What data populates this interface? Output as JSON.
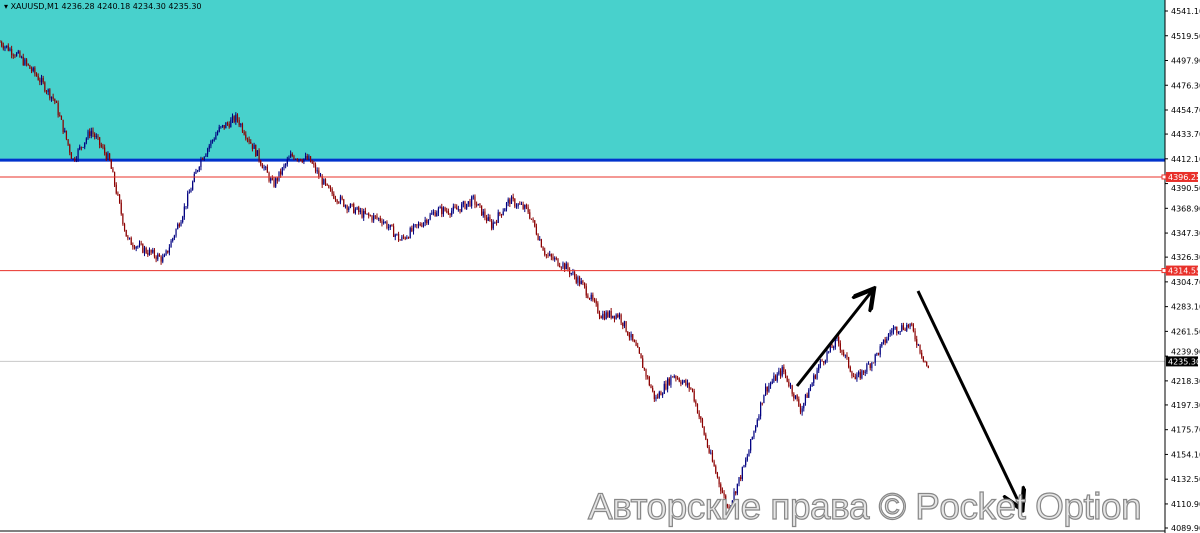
{
  "header": {
    "symbol_label": "XAUUSD,M1",
    "ohlc": "4236.28 4240.18 4234.30 4235.30"
  },
  "watermark": "Авторские права © Pocket Option",
  "colors": {
    "zone": "#48d1cc",
    "zone_line": "#0033cc",
    "level": "#e8302a",
    "up": "#000080",
    "down": "#8b0000",
    "current_price_bg": "#000000"
  },
  "chart_data": {
    "type": "candlestick",
    "ylim": [
      4089.9,
      4541.1
    ],
    "y_ticks": [
      "4541.10",
      "4519.50",
      "4497.90",
      "4476.30",
      "4454.70",
      "4433.70",
      "4412.10",
      "4390.50",
      "4368.90",
      "4347.30",
      "4326.30",
      "4304.70",
      "4283.10",
      "4261.50",
      "4239.90",
      "4218.30",
      "4197.30",
      "4175.70",
      "4154.10",
      "4132.50",
      "4110.90",
      "4089.90"
    ],
    "price_path": [
      4514,
      4502,
      4485,
      4463,
      4411,
      4437,
      4411,
      4341,
      4332,
      4324,
      4363,
      4411,
      4437,
      4448,
      4420,
      4389,
      4415,
      4411,
      4385,
      4372,
      4363,
      4359,
      4341,
      4354,
      4367,
      4367,
      4376,
      4354,
      4376,
      4367,
      4328,
      4319,
      4302,
      4276,
      4276,
      4245,
      4202,
      4224,
      4211,
      4154,
      4106,
      4149,
      4210,
      4228,
      4193,
      4232,
      4254,
      4219,
      4237,
      4263,
      4267,
      4228
    ],
    "zone": {
      "from": 4412.1,
      "to": 4541.1,
      "line": 4411
    },
    "levels": [
      {
        "label": "4396.25",
        "value": 4396.25
      },
      {
        "label": "4314.55",
        "value": 4314.55
      }
    ],
    "current_price": {
      "label": "4235.30",
      "value": 4235.3
    },
    "annotations": [
      {
        "type": "arrow",
        "direction": "up"
      },
      {
        "type": "arrow",
        "direction": "down"
      }
    ]
  }
}
